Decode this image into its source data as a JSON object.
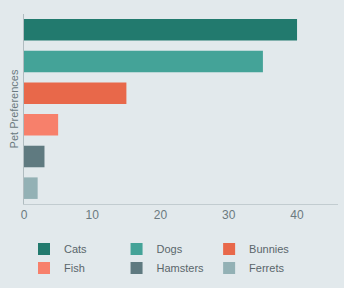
{
  "chart_data": {
    "type": "bar",
    "orientation": "horizontal",
    "y_label": "Pet Preferences",
    "categories": [
      "Cats",
      "Dogs",
      "Bunnies",
      "Fish",
      "Hamsters",
      "Ferrets"
    ],
    "values": [
      40,
      35,
      15,
      5,
      3,
      2
    ],
    "colors": [
      "#227a6e",
      "#44a398",
      "#e8684a",
      "#f7806b",
      "#5f7a80",
      "#93b1b5"
    ],
    "xlim": [
      0,
      46
    ],
    "xticks": [
      0,
      10,
      20,
      30,
      40
    ],
    "grid": false,
    "legend": "bottom",
    "tick_labels": "x"
  }
}
